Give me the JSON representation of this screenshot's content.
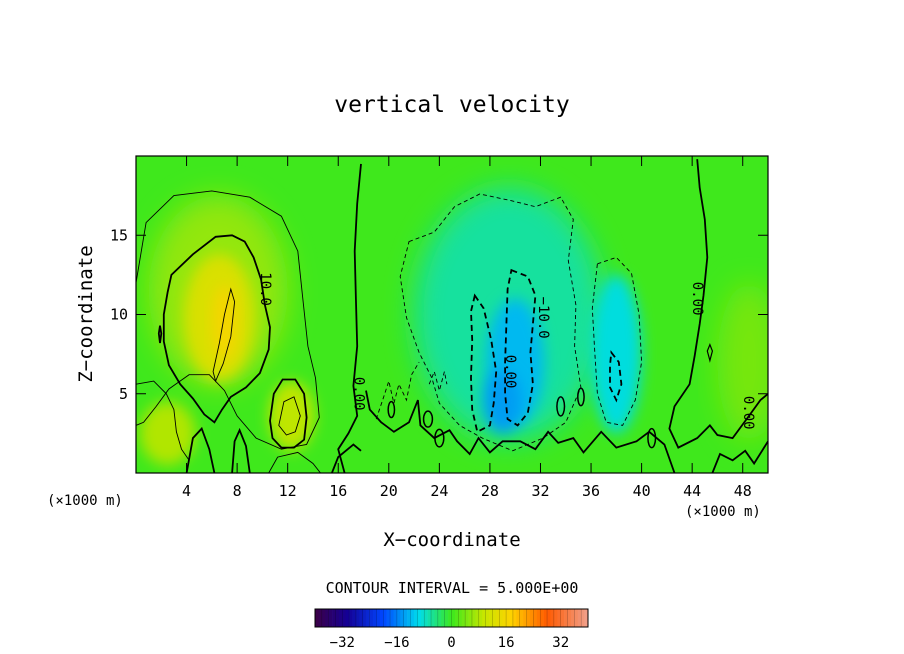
{
  "chart_data": {
    "type": "heatmap",
    "title": "vertical velocity",
    "xlabel": "X−coordinate",
    "ylabel": "Z−coordinate",
    "x_unit_left": "(×1000 m)",
    "x_unit_right": "(×1000 m)",
    "xlim": [
      0,
      50
    ],
    "ylim": [
      0,
      20
    ],
    "x_ticks": [
      4,
      8,
      12,
      16,
      20,
      24,
      28,
      32,
      36,
      40,
      44,
      48
    ],
    "y_ticks": [
      5,
      10,
      15
    ],
    "contour_interval_label": "CONTOUR INTERVAL = 5.000E+00",
    "colorbar": {
      "range": [
        -40,
        40
      ],
      "ticks": [
        -32,
        -16,
        0,
        16,
        32
      ],
      "tick_labels": [
        "−32",
        "−16",
        "0",
        "16",
        "32"
      ]
    },
    "contour_labels": [
      {
        "text": "10.0",
        "x": 10.2,
        "y": 11.6,
        "rot": 90
      },
      {
        "text": "0.00",
        "x": 17.6,
        "y": 5.0,
        "rot": 90
      },
      {
        "text": "0.00",
        "x": 29.6,
        "y": 6.4,
        "rot": 90
      },
      {
        "text": "−10.0",
        "x": 32.2,
        "y": 9.8,
        "rot": 90
      },
      {
        "text": "0.00",
        "x": 44.4,
        "y": 11.0,
        "rot": 90
      },
      {
        "text": "0.00",
        "x": 48.4,
        "y": 3.8,
        "rot": 90
      }
    ],
    "features": [
      {
        "kind": "updraft",
        "x": 7.0,
        "z": 9.5,
        "peak_w": 16,
        "core_contour": 15,
        "outer_contour": 10
      },
      {
        "kind": "updraft",
        "x": 12.3,
        "z": 3.6,
        "peak_w": 12,
        "outer_contour": 10
      },
      {
        "kind": "downdraft",
        "x": 30.0,
        "z": 7.0,
        "peak_w": -14,
        "core_contour": -10
      },
      {
        "kind": "downdraft",
        "x": 38.0,
        "z": 6.5,
        "peak_w": -11,
        "core_contour": -10
      }
    ]
  }
}
